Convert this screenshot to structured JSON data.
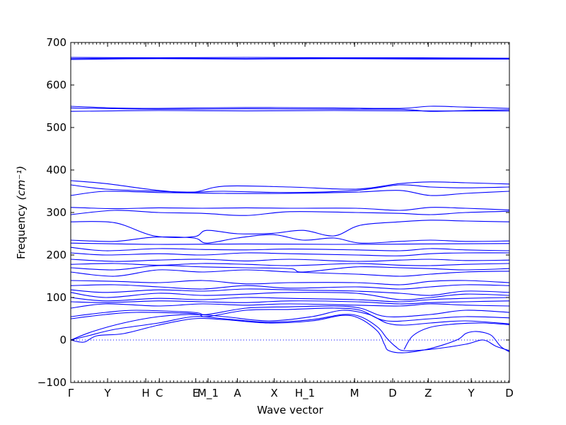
{
  "chart_data": {
    "type": "line",
    "title": "",
    "xlabel": "Wave vector",
    "ylabel": "Frequency",
    "ylabel_unit": "(cm⁻¹)",
    "ylim": [
      -100,
      700
    ],
    "yticks": [
      -100,
      0,
      100,
      200,
      300,
      400,
      500,
      600,
      700
    ],
    "xlim": [
      0,
      100
    ],
    "xticks": [
      {
        "label": "Γ",
        "x": 0
      },
      {
        "label": "Y",
        "x": 8.4
      },
      {
        "label": "H",
        "x": 17.1
      },
      {
        "label": "C",
        "x": 20.2
      },
      {
        "label": "E",
        "x": 28.5
      },
      {
        "label": "M_1",
        "x": 31.3
      },
      {
        "label": "A",
        "x": 38.0
      },
      {
        "label": "X",
        "x": 46.4
      },
      {
        "label": "H_1",
        "x": 53.4
      },
      {
        "label": "M",
        "x": 64.7
      },
      {
        "label": "D",
        "x": 73.4
      },
      {
        "label": "Z",
        "x": 81.5
      },
      {
        "label": "Y",
        "x": 91.3
      },
      {
        "label": "D",
        "x": 100
      }
    ],
    "line_color": "#0000ff",
    "series": [
      {
        "x": [
          0,
          20,
          40,
          60,
          80,
          100
        ],
        "y": [
          662,
          663,
          662,
          663,
          662,
          662
        ]
      },
      {
        "x": [
          0,
          20,
          40,
          60,
          80,
          100
        ],
        "y": [
          665,
          664,
          665,
          664,
          664,
          663
        ]
      },
      {
        "x": [
          0,
          20,
          40,
          60,
          80,
          100
        ],
        "y": [
          660,
          662,
          661,
          662,
          661,
          661
        ]
      },
      {
        "x": [
          0,
          10,
          20,
          40,
          60,
          75,
          82,
          90,
          100
        ],
        "y": [
          550,
          546,
          545,
          547,
          546,
          545,
          550,
          548,
          545
        ]
      },
      {
        "x": [
          0,
          20,
          40,
          60,
          75,
          82,
          90,
          100
        ],
        "y": [
          546,
          543,
          544,
          543,
          543,
          538,
          540,
          542
        ]
      },
      {
        "x": [
          0,
          20,
          40,
          60,
          80,
          100
        ],
        "y": [
          538,
          540,
          539,
          540,
          539,
          539
        ]
      },
      {
        "x": [
          0,
          8,
          20,
          28,
          35,
          50,
          65,
          75,
          82,
          90,
          100
        ],
        "y": [
          375,
          368,
          352,
          348,
          362,
          360,
          355,
          368,
          372,
          370,
          367
        ]
      },
      {
        "x": [
          0,
          8,
          20,
          28,
          35,
          50,
          65,
          75,
          82,
          90,
          100
        ],
        "y": [
          365,
          355,
          350,
          348,
          350,
          347,
          352,
          365,
          360,
          358,
          360
        ]
      },
      {
        "x": [
          0,
          8,
          20,
          28,
          35,
          50,
          65,
          75,
          82,
          90,
          100
        ],
        "y": [
          340,
          350,
          347,
          346,
          345,
          345,
          348,
          352,
          340,
          345,
          350
        ]
      },
      {
        "x": [
          0,
          10,
          20,
          30,
          40,
          50,
          65,
          75,
          82,
          90,
          100
        ],
        "y": [
          312,
          309,
          311,
          310,
          311,
          310,
          310,
          305,
          312,
          310,
          306
        ]
      },
      {
        "x": [
          0,
          10,
          20,
          30,
          40,
          50,
          65,
          75,
          82,
          90,
          100
        ],
        "y": [
          295,
          305,
          300,
          298,
          293,
          302,
          300,
          298,
          295,
          300,
          303
        ]
      },
      {
        "x": [
          0,
          10,
          19,
          28,
          31,
          38,
          46,
          53,
          60,
          66,
          75,
          82,
          90,
          100
        ],
        "y": [
          278,
          276,
          245,
          243,
          258,
          250,
          251,
          258,
          245,
          270,
          278,
          282,
          280,
          278
        ]
      },
      {
        "x": [
          0,
          10,
          19,
          28,
          31,
          38,
          46,
          53,
          60,
          66,
          75,
          82,
          90,
          100
        ],
        "y": [
          235,
          232,
          242,
          240,
          228,
          240,
          248,
          235,
          240,
          228,
          232,
          235,
          232,
          233
        ]
      },
      {
        "x": [
          0,
          20,
          40,
          60,
          80,
          100
        ],
        "y": [
          228,
          225,
          226,
          225,
          226,
          227
        ]
      },
      {
        "x": [
          0,
          8,
          20,
          30,
          40,
          50,
          65,
          75,
          82,
          90,
          100
        ],
        "y": [
          218,
          210,
          215,
          213,
          212,
          214,
          212,
          210,
          215,
          212,
          210
        ]
      },
      {
        "x": [
          0,
          8,
          20,
          30,
          40,
          50,
          65,
          75,
          82,
          90,
          100
        ],
        "y": [
          205,
          200,
          203,
          200,
          205,
          203,
          200,
          198,
          203,
          205,
          205
        ]
      },
      {
        "x": [
          0,
          10,
          20,
          30,
          40,
          50,
          65,
          75,
          82,
          90,
          100
        ],
        "y": [
          190,
          185,
          188,
          190,
          186,
          190,
          185,
          188,
          190,
          187,
          188
        ]
      },
      {
        "x": [
          0,
          10,
          20,
          30,
          40,
          50,
          65,
          75,
          82,
          90,
          100
        ],
        "y": [
          178,
          180,
          176,
          180,
          178,
          175,
          180,
          176,
          175,
          178,
          180
        ]
      },
      {
        "x": [
          0,
          10,
          20,
          30,
          40,
          50,
          53,
          65,
          75,
          82,
          90,
          100
        ],
        "y": [
          170,
          165,
          175,
          172,
          170,
          168,
          160,
          172,
          170,
          168,
          165,
          168
        ]
      },
      {
        "x": [
          0,
          10,
          20,
          30,
          40,
          50,
          65,
          75,
          82,
          90,
          100
        ],
        "y": [
          160,
          150,
          165,
          160,
          165,
          160,
          155,
          150,
          155,
          160,
          162
        ]
      },
      {
        "x": [
          0,
          10,
          20,
          30,
          40,
          50,
          65,
          75,
          82,
          90,
          100
        ],
        "y": [
          140,
          138,
          135,
          140,
          132,
          135,
          135,
          130,
          138,
          140,
          135
        ]
      },
      {
        "x": [
          0,
          10,
          20,
          30,
          40,
          50,
          65,
          75,
          82,
          90,
          100
        ],
        "y": [
          128,
          130,
          125,
          120,
          128,
          122,
          125,
          120,
          125,
          130,
          128
        ]
      },
      {
        "x": [
          0,
          8,
          20,
          30,
          40,
          50,
          65,
          75,
          82,
          90,
          100
        ],
        "y": [
          118,
          112,
          118,
          115,
          120,
          118,
          115,
          110,
          105,
          115,
          112
        ]
      },
      {
        "x": [
          0,
          8,
          20,
          30,
          40,
          50,
          65,
          75,
          82,
          90,
          100
        ],
        "y": [
          112,
          100,
          110,
          105,
          108,
          112,
          110,
          95,
          100,
          108,
          105
        ]
      },
      {
        "x": [
          0,
          8,
          20,
          30,
          40,
          50,
          65,
          75,
          82,
          90,
          100
        ],
        "y": [
          100,
          92,
          98,
          95,
          100,
          98,
          95,
          90,
          95,
          98,
          100
        ]
      },
      {
        "x": [
          0,
          8,
          20,
          30,
          40,
          50,
          65,
          75,
          82,
          90,
          100
        ],
        "y": [
          90,
          88,
          92,
          90,
          88,
          92,
          90,
          85,
          88,
          90,
          92
        ]
      },
      {
        "x": [
          0,
          8,
          20,
          30,
          40,
          50,
          65,
          75,
          82,
          90,
          100
        ],
        "y": [
          75,
          85,
          80,
          85,
          82,
          85,
          82,
          80,
          85,
          82,
          80
        ]
      },
      {
        "x": [
          0,
          8,
          15,
          28,
          31,
          40,
          50,
          60,
          66,
          72,
          82,
          90,
          100
        ],
        "y": [
          55,
          65,
          70,
          65,
          60,
          75,
          78,
          80,
          75,
          55,
          60,
          70,
          65
        ]
      },
      {
        "x": [
          0,
          8,
          15,
          28,
          31,
          40,
          50,
          60,
          66,
          72,
          82,
          90,
          100
        ],
        "y": [
          50,
          60,
          65,
          62,
          55,
          70,
          72,
          75,
          70,
          45,
          50,
          55,
          52
        ]
      },
      {
        "x": [
          0,
          5,
          12,
          20,
          28,
          35,
          45,
          55,
          62,
          68,
          72,
          76,
          82,
          90,
          100
        ],
        "y": [
          0,
          20,
          40,
          55,
          60,
          55,
          45,
          55,
          70,
          60,
          40,
          35,
          40,
          45,
          38
        ]
      },
      {
        "x": [
          0,
          4,
          10,
          20,
          28,
          35,
          45,
          55,
          62,
          66,
          70,
          72,
          74,
          76,
          82,
          90,
          94,
          97,
          100
        ],
        "y": [
          0,
          10,
          25,
          40,
          55,
          50,
          42,
          48,
          60,
          55,
          30,
          5,
          -15,
          -25,
          -22,
          -10,
          0,
          -15,
          -25
        ]
      },
      {
        "x": [
          0,
          3,
          6,
          12,
          20,
          28,
          35,
          45,
          55,
          62,
          66,
          70,
          71.5,
          72.5,
          76,
          82,
          88,
          90,
          92,
          94,
          96,
          98,
          100
        ],
        "y": [
          0,
          -5,
          10,
          15,
          35,
          50,
          48,
          40,
          45,
          58,
          50,
          20,
          -10,
          -25,
          -30,
          -20,
          0,
          15,
          20,
          18,
          10,
          -15,
          -28
        ]
      },
      {
        "x": [
          76,
          78,
          82,
          88,
          94,
          100
        ],
        "y": [
          -22,
          10,
          30,
          38,
          40,
          36
        ]
      }
    ]
  }
}
